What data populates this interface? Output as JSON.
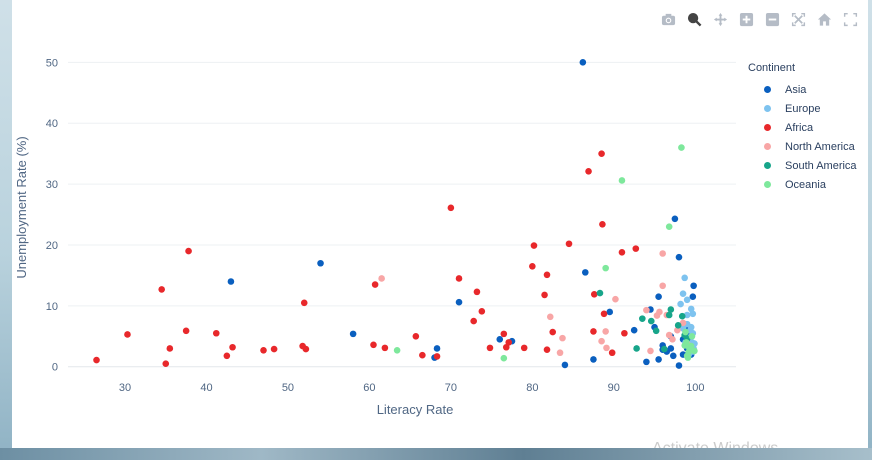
{
  "chart_data": {
    "type": "scatter",
    "xlabel": "Literacy Rate",
    "ylabel": "Unemployment Rate (%)",
    "xlim": [
      23,
      105
    ],
    "ylim": [
      -3,
      54
    ],
    "x_ticks": [
      30,
      40,
      50,
      60,
      70,
      80,
      90,
      100
    ],
    "y_ticks": [
      0,
      10,
      20,
      30,
      40,
      50
    ],
    "grid": "horizontal",
    "legend_title": "Continent",
    "legend_position": "right",
    "series": [
      {
        "name": "Asia",
        "color": "#0a5fbf",
        "points": [
          [
            43.0,
            14.0
          ],
          [
            54.0,
            17.0
          ],
          [
            58.0,
            5.4
          ],
          [
            68.0,
            1.5
          ],
          [
            68.3,
            3.0
          ],
          [
            71.0,
            10.6
          ],
          [
            76.0,
            4.5
          ],
          [
            77.5,
            4.2
          ],
          [
            84.0,
            0.3
          ],
          [
            86.2,
            50.0
          ],
          [
            86.5,
            15.5
          ],
          [
            87.5,
            1.2
          ],
          [
            89.5,
            9.0
          ],
          [
            92.5,
            6.0
          ],
          [
            94.0,
            0.8
          ],
          [
            94.5,
            9.4
          ],
          [
            95.5,
            1.2
          ],
          [
            95.5,
            11.5
          ],
          [
            96.0,
            3.5
          ],
          [
            96.0,
            2.8
          ],
          [
            97.0,
            5.0
          ],
          [
            97.0,
            3.0
          ],
          [
            97.5,
            24.3
          ],
          [
            98.0,
            18.0
          ],
          [
            98.0,
            0.2
          ],
          [
            98.5,
            4.5
          ],
          [
            99.0,
            3.0
          ],
          [
            99.5,
            2.5
          ],
          [
            99.5,
            2.0
          ],
          [
            99.7,
            11.5
          ],
          [
            99.8,
            13.3
          ],
          [
            99.0,
            6.0
          ],
          [
            98.5,
            2.0
          ],
          [
            97.3,
            1.8
          ],
          [
            99.0,
            4.5
          ],
          [
            99.3,
            5.0
          ],
          [
            96.5,
            2.5
          ],
          [
            95.0,
            6.5
          ]
        ]
      },
      {
        "name": "Europe",
        "color": "#7ec3ef",
        "points": [
          [
            98.7,
            14.6
          ],
          [
            98.5,
            12.0
          ],
          [
            99.0,
            11.0
          ],
          [
            98.2,
            10.3
          ],
          [
            99.5,
            9.5
          ],
          [
            99.0,
            8.5
          ],
          [
            99.7,
            8.7
          ],
          [
            99.0,
            7.0
          ],
          [
            99.5,
            6.5
          ],
          [
            98.5,
            6.3
          ],
          [
            99.7,
            5.5
          ],
          [
            99.5,
            5.0
          ],
          [
            99.0,
            4.5
          ],
          [
            99.6,
            4.0
          ],
          [
            99.2,
            3.3
          ],
          [
            99.8,
            3.0
          ],
          [
            99.7,
            2.5
          ],
          [
            99.2,
            2.0
          ],
          [
            98.8,
            4.0
          ],
          [
            99.9,
            3.8
          ],
          [
            99.4,
            6.0
          ]
        ]
      },
      {
        "name": "Africa",
        "color": "#e8282b",
        "points": [
          [
            26.5,
            1.1
          ],
          [
            30.3,
            5.3
          ],
          [
            34.5,
            12.7
          ],
          [
            35.0,
            0.5
          ],
          [
            35.5,
            3.0
          ],
          [
            37.5,
            5.9
          ],
          [
            37.8,
            19.0
          ],
          [
            41.2,
            5.5
          ],
          [
            42.5,
            1.8
          ],
          [
            43.2,
            3.2
          ],
          [
            47.0,
            2.7
          ],
          [
            48.3,
            2.9
          ],
          [
            51.8,
            3.4
          ],
          [
            52.0,
            10.5
          ],
          [
            52.2,
            2.9
          ],
          [
            60.5,
            3.6
          ],
          [
            60.7,
            13.5
          ],
          [
            61.9,
            3.1
          ],
          [
            65.7,
            5.0
          ],
          [
            66.5,
            1.9
          ],
          [
            68.3,
            1.7
          ],
          [
            70.0,
            26.1
          ],
          [
            71.0,
            14.5
          ],
          [
            72.8,
            7.5
          ],
          [
            73.2,
            12.3
          ],
          [
            73.8,
            9.1
          ],
          [
            74.8,
            3.1
          ],
          [
            76.5,
            5.4
          ],
          [
            76.8,
            3.2
          ],
          [
            77.1,
            4.0
          ],
          [
            79.0,
            3.1
          ],
          [
            80.0,
            16.5
          ],
          [
            80.2,
            19.9
          ],
          [
            81.5,
            11.8
          ],
          [
            81.8,
            2.8
          ],
          [
            81.8,
            15.1
          ],
          [
            82.5,
            5.7
          ],
          [
            84.5,
            20.2
          ],
          [
            86.9,
            32.1
          ],
          [
            87.5,
            5.8
          ],
          [
            87.6,
            11.9
          ],
          [
            88.5,
            35.0
          ],
          [
            88.6,
            23.4
          ],
          [
            88.8,
            8.7
          ],
          [
            89.8,
            2.3
          ],
          [
            91.0,
            18.8
          ],
          [
            91.3,
            5.5
          ],
          [
            92.7,
            19.4
          ]
        ]
      },
      {
        "name": "North America",
        "color": "#f8a6a6",
        "points": [
          [
            61.5,
            14.5
          ],
          [
            82.2,
            8.2
          ],
          [
            83.4,
            2.3
          ],
          [
            83.7,
            4.7
          ],
          [
            88.5,
            4.2
          ],
          [
            89.0,
            5.8
          ],
          [
            89.1,
            3.1
          ],
          [
            90.2,
            11.1
          ],
          [
            94.0,
            9.3
          ],
          [
            94.5,
            2.6
          ],
          [
            95.3,
            8.4
          ],
          [
            95.6,
            9.0
          ],
          [
            96.0,
            18.6
          ],
          [
            96.0,
            13.3
          ],
          [
            96.5,
            8.5
          ],
          [
            97.2,
            4.5
          ],
          [
            98.5,
            7.2
          ],
          [
            99.0,
            3.8
          ],
          [
            97.8,
            6.0
          ],
          [
            96.8,
            5.2
          ]
        ]
      },
      {
        "name": "South America",
        "color": "#17a58a",
        "points": [
          [
            88.3,
            12.1
          ],
          [
            92.8,
            3.0
          ],
          [
            93.5,
            7.9
          ],
          [
            94.6,
            7.5
          ],
          [
            95.2,
            5.9
          ],
          [
            96.2,
            2.9
          ],
          [
            96.8,
            8.5
          ],
          [
            97.0,
            9.4
          ],
          [
            97.9,
            6.8
          ],
          [
            98.4,
            8.3
          ],
          [
            98.7,
            5.2
          ],
          [
            99.0,
            4.6
          ]
        ]
      },
      {
        "name": "Oceania",
        "color": "#7ee89c",
        "points": [
          [
            63.4,
            2.7
          ],
          [
            76.5,
            1.4
          ],
          [
            89.0,
            16.2
          ],
          [
            91.0,
            30.6
          ],
          [
            96.8,
            23.0
          ],
          [
            98.3,
            36.0
          ],
          [
            98.8,
            5.7
          ],
          [
            99.0,
            1.8
          ],
          [
            99.2,
            2.4
          ],
          [
            99.5,
            3.4
          ],
          [
            98.9,
            4.0
          ],
          [
            99.6,
            5.0
          ],
          [
            99.3,
            2.9
          ],
          [
            98.7,
            3.5
          ],
          [
            99.9,
            2.6
          ],
          [
            99.1,
            1.5
          ]
        ]
      }
    ]
  },
  "modebar": [
    {
      "name": "camera-icon",
      "title": "Download plot as a png"
    },
    {
      "name": "zoom-icon",
      "title": "Zoom"
    },
    {
      "name": "pan-icon",
      "title": "Pan"
    },
    {
      "name": "zoom-in-icon",
      "title": "Zoom in"
    },
    {
      "name": "zoom-out-icon",
      "title": "Zoom out"
    },
    {
      "name": "autoscale-icon",
      "title": "Autoscale"
    },
    {
      "name": "home-icon",
      "title": "Reset axes"
    },
    {
      "name": "spike-icon",
      "title": "Toggle Spike Lines"
    }
  ],
  "watermark": "Activate Windows"
}
